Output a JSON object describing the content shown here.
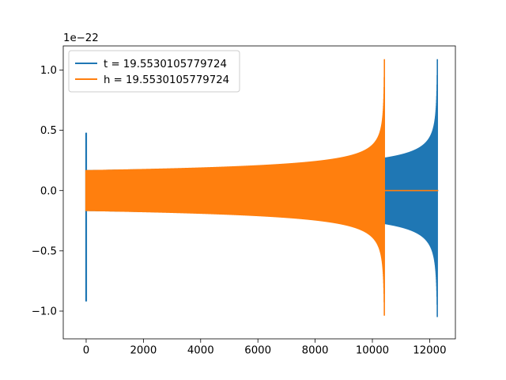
{
  "chart_data": {
    "type": "line",
    "title": "",
    "xlabel": "",
    "ylabel": "",
    "y_offset_label": "1e−22",
    "xlim": [
      -800,
      12900
    ],
    "ylim": [
      -1.23,
      1.2
    ],
    "x_ticks": [
      0,
      2000,
      4000,
      6000,
      8000,
      10000,
      12000
    ],
    "x_tick_labels": [
      "0",
      "2000",
      "4000",
      "6000",
      "8000",
      "10000",
      "12000"
    ],
    "y_ticks": [
      -1.0,
      -0.5,
      0.0,
      0.5,
      1.0
    ],
    "y_tick_labels": [
      "−1.0",
      "−0.5",
      "0.0",
      "0.5",
      "1.0"
    ],
    "grid": false,
    "legend_position": "top-left",
    "series": [
      {
        "name": "t = 19.5530105779724",
        "color": "#1f77b4",
        "kind": "chirp",
        "x_start": 0,
        "x_merge": 12270,
        "x_end": 12300,
        "spike_min": -0.92,
        "spike_max": 0.48,
        "start_amplitude": 0.17,
        "peak_max": 1.09,
        "peak_min": -1.13
      },
      {
        "name": "h = 19.5530105779724",
        "color": "#ff7f0e",
        "kind": "chirp",
        "x_start": 0,
        "x_merge": 10420,
        "x_end": 12300,
        "spike_min": -0.17,
        "spike_max": 0.17,
        "start_amplitude": 0.17,
        "peak_max": 1.09,
        "peak_min": -1.13
      }
    ]
  }
}
